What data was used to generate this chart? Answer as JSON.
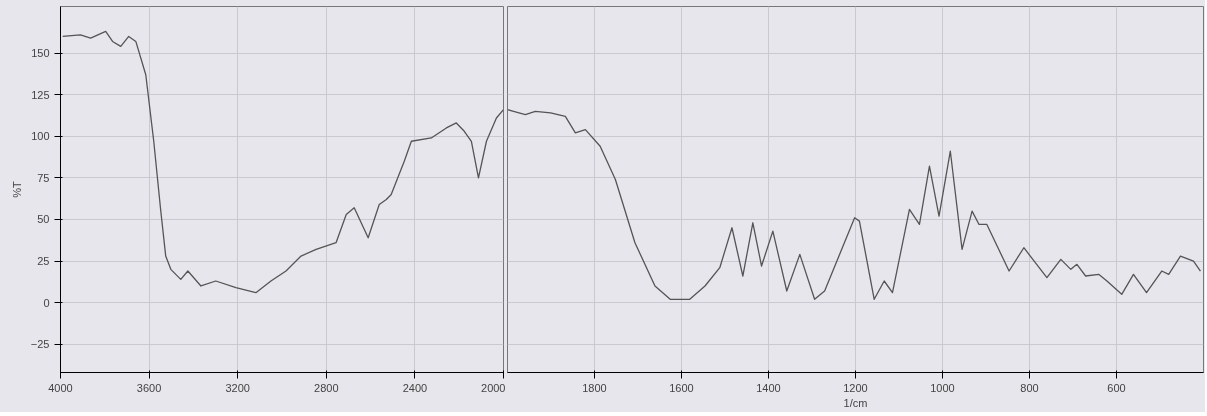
{
  "chart_data": [
    {
      "type": "line",
      "ylabel": "%T",
      "xlim": [
        4000,
        2000
      ],
      "xticks": [
        4000,
        3600,
        3200,
        2800,
        2400,
        2000
      ],
      "ylim": [
        -42,
        178
      ],
      "yticks": [
        -25,
        0,
        25,
        50,
        75,
        100,
        125,
        150
      ],
      "grid": true,
      "color": "#555555",
      "x": [
        3990,
        3910,
        3864,
        3796,
        3765,
        3728,
        3692,
        3660,
        3615,
        3579,
        3548,
        3525,
        3502,
        3457,
        3425,
        3366,
        3299,
        3208,
        3118,
        3050,
        2982,
        2914,
        2846,
        2756,
        2710,
        2674,
        2611,
        2561,
        2529,
        2507,
        2448,
        2416,
        2326,
        2258,
        2213,
        2177,
        2145,
        2113,
        2077,
        2032,
        2000
      ],
      "values": [
        160,
        161,
        159,
        163,
        157,
        154,
        160,
        157,
        137,
        97,
        56,
        28,
        20,
        14,
        19,
        10,
        13,
        9,
        6,
        13,
        19,
        28,
        32,
        36,
        53,
        57,
        39,
        59,
        62,
        65,
        85,
        97,
        99,
        105,
        108,
        103,
        97,
        75,
        97,
        111,
        116
      ]
    },
    {
      "type": "line",
      "xlabel": "1/cm",
      "xlim": [
        2000,
        400
      ],
      "xticks": [
        1800,
        1600,
        1400,
        1200,
        1000,
        800,
        600
      ],
      "ylim": [
        -42,
        178
      ],
      "yticks": [
        -25,
        0,
        25,
        50,
        75,
        100,
        125,
        150
      ],
      "grid": true,
      "tick_labels": "x",
      "color": "#555555",
      "x": [
        2000,
        1986,
        1959,
        1936,
        1901,
        1867,
        1844,
        1821,
        1787,
        1752,
        1707,
        1661,
        1626,
        1581,
        1546,
        1512,
        1484,
        1459,
        1436,
        1416,
        1390,
        1358,
        1328,
        1294,
        1271,
        1202,
        1191,
        1157,
        1134,
        1115,
        1076,
        1053,
        1030,
        1008,
        982,
        955,
        932,
        916,
        898,
        847,
        813,
        760,
        728,
        705,
        691,
        671,
        641,
        622,
        588,
        561,
        531,
        496,
        480,
        453,
        423,
        407
      ],
      "values": [
        116,
        115,
        113,
        115,
        114,
        112,
        102,
        104,
        94,
        74,
        36,
        10,
        2,
        2,
        10,
        21,
        45,
        16,
        48,
        22,
        43,
        7,
        29,
        2,
        7,
        51,
        49,
        2,
        13,
        6,
        56,
        47,
        82,
        52,
        91,
        32,
        55,
        47,
        47,
        19,
        33,
        15,
        26,
        20,
        23,
        16,
        17,
        13,
        5,
        17,
        6,
        19,
        17,
        28,
        25,
        19
      ]
    }
  ]
}
